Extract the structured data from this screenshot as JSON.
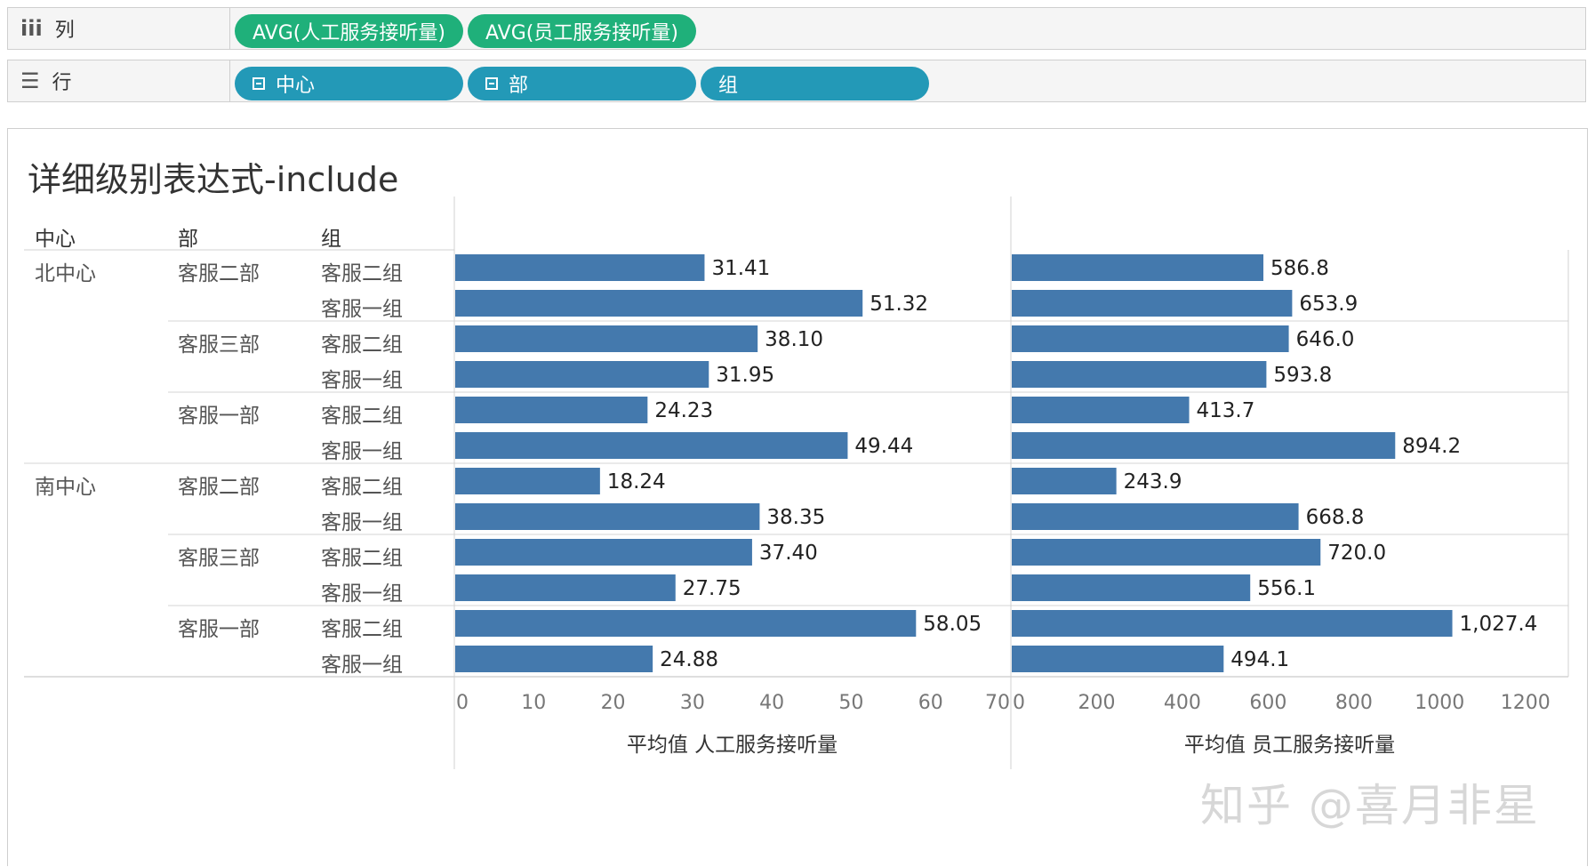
{
  "shelves": {
    "columns": {
      "label": "列",
      "icon": "columns-icon",
      "pills": [
        "AVG(人工服务接听量)",
        "AVG(员工服务接听量)"
      ]
    },
    "rows": {
      "label": "行",
      "icon": "rows-icon",
      "pills": [
        "中心",
        "部",
        "组"
      ]
    }
  },
  "view": {
    "title": "详细级别表达式-include",
    "headers": {
      "center": "中心",
      "dept": "部",
      "group": "组"
    }
  },
  "watermark": "知乎 @喜月非星",
  "colors": {
    "bar": "#4479ad",
    "pill_green": "#1fb07a",
    "pill_teal": "#2399b7"
  },
  "chart_data": {
    "type": "bar",
    "orientation": "horizontal",
    "rows": [
      {
        "center": "北中心",
        "dept": "客服二部",
        "group": "客服二组"
      },
      {
        "center": "北中心",
        "dept": "客服二部",
        "group": "客服一组"
      },
      {
        "center": "北中心",
        "dept": "客服三部",
        "group": "客服二组"
      },
      {
        "center": "北中心",
        "dept": "客服三部",
        "group": "客服一组"
      },
      {
        "center": "北中心",
        "dept": "客服一部",
        "group": "客服二组"
      },
      {
        "center": "北中心",
        "dept": "客服一部",
        "group": "客服一组"
      },
      {
        "center": "南中心",
        "dept": "客服二部",
        "group": "客服二组"
      },
      {
        "center": "南中心",
        "dept": "客服二部",
        "group": "客服一组"
      },
      {
        "center": "南中心",
        "dept": "客服三部",
        "group": "客服二组"
      },
      {
        "center": "南中心",
        "dept": "客服三部",
        "group": "客服一组"
      },
      {
        "center": "南中心",
        "dept": "客服一部",
        "group": "客服二组"
      },
      {
        "center": "南中心",
        "dept": "客服一部",
        "group": "客服一组"
      }
    ],
    "panes": [
      {
        "axis_title": "平均值 人工服务接听量",
        "values": [
          31.41,
          51.32,
          38.1,
          31.95,
          24.23,
          49.44,
          18.24,
          38.35,
          37.4,
          27.75,
          58.05,
          24.88
        ],
        "labels": [
          "31.41",
          "51.32",
          "38.10",
          "31.95",
          "24.23",
          "49.44",
          "18.24",
          "38.35",
          "37.40",
          "27.75",
          "58.05",
          "24.88"
        ],
        "xlim": [
          0,
          70
        ],
        "ticks": [
          0,
          10,
          20,
          30,
          40,
          50,
          60,
          70
        ]
      },
      {
        "axis_title": "平均值 员工服务接听量",
        "values": [
          586.8,
          653.9,
          646.0,
          593.8,
          413.7,
          894.2,
          243.9,
          668.8,
          720.0,
          556.1,
          1027.4,
          494.1
        ],
        "labels": [
          "586.8",
          "653.9",
          "646.0",
          "593.8",
          "413.7",
          "894.2",
          "243.9",
          "668.8",
          "720.0",
          "556.1",
          "1,027.4",
          "494.1"
        ],
        "xlim": [
          0,
          1300
        ],
        "ticks": [
          0,
          200,
          400,
          600,
          800,
          1000,
          1200
        ]
      }
    ]
  }
}
